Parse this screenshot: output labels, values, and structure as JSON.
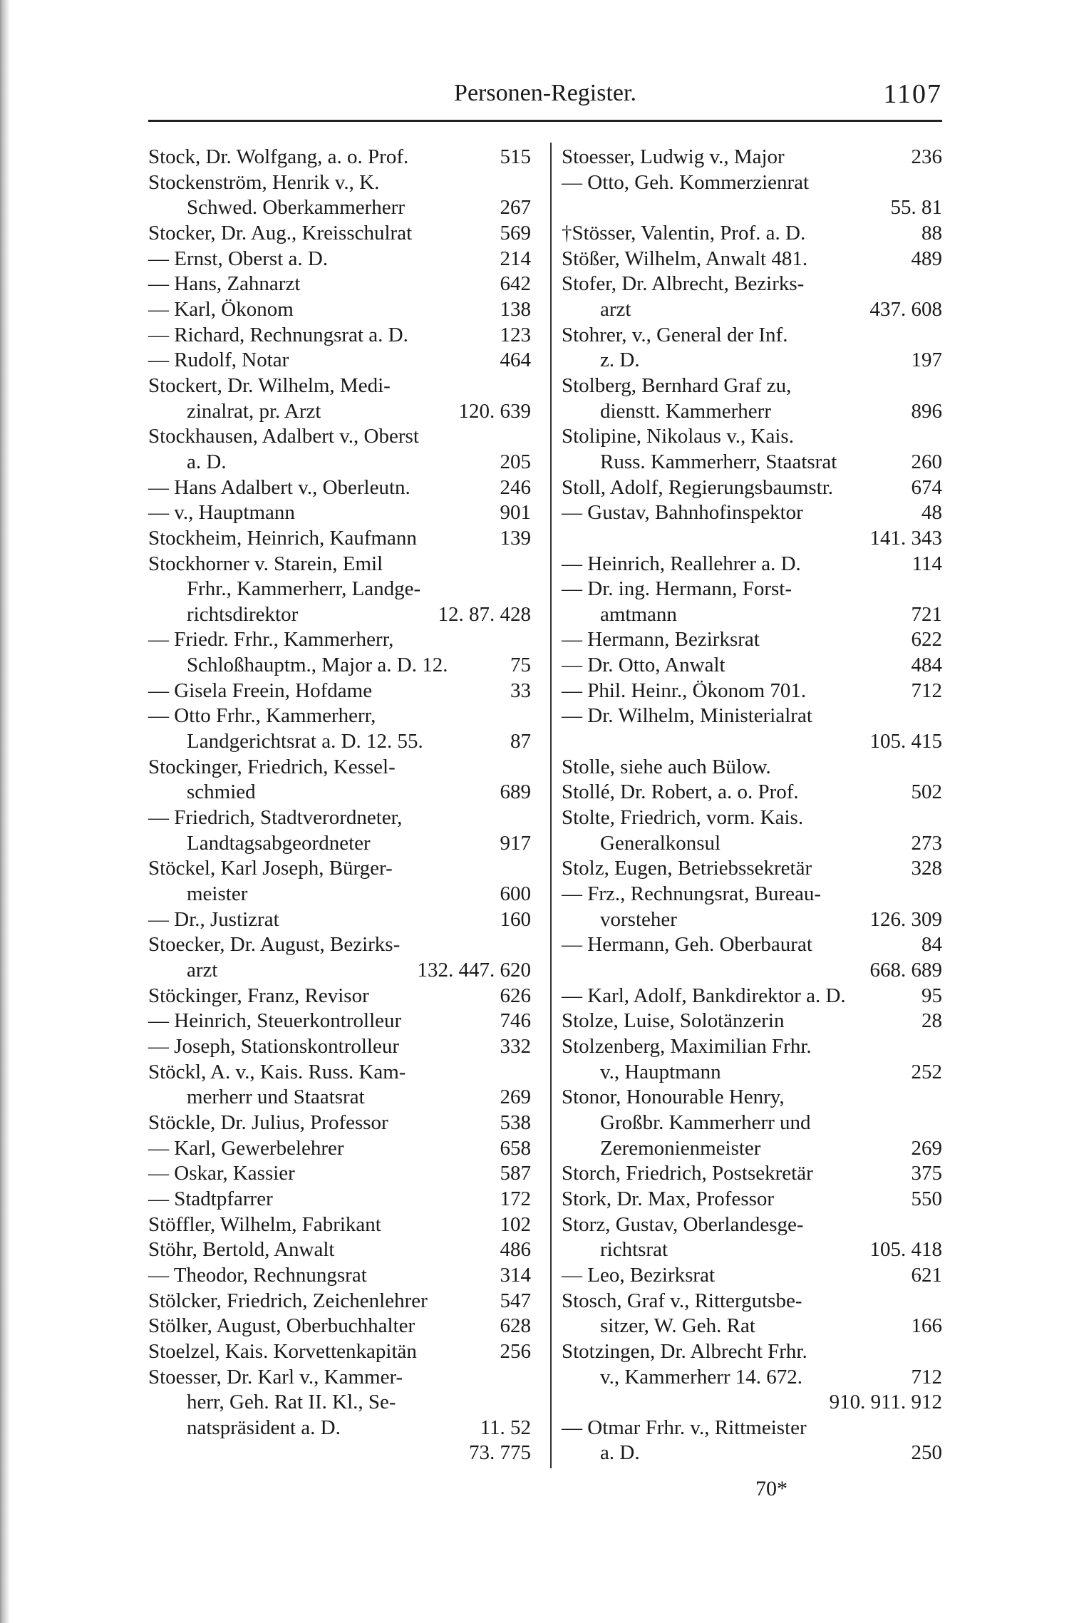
{
  "header": {
    "title": "Personen-Register.",
    "page_number": "1107"
  },
  "footer": {
    "signature": "70*"
  },
  "columns": {
    "left": [
      {
        "t": "Stock, Dr. Wolfgang, a. o. Prof.",
        "n": "515"
      },
      {
        "t": "Stockenström, Henrik v., K.",
        "n": ""
      },
      {
        "t": "Schwed. Oberkammerherr",
        "n": "267",
        "i": true
      },
      {
        "t": "Stocker, Dr. Aug., Kreisschulrat",
        "n": "569"
      },
      {
        "t": "— Ernst, Oberst a. D.",
        "n": "214"
      },
      {
        "t": "— Hans, Zahnarzt",
        "n": "642"
      },
      {
        "t": "— Karl, Ökonom",
        "n": "138"
      },
      {
        "t": "— Richard, Rechnungsrat a. D.",
        "n": "123"
      },
      {
        "t": "— Rudolf, Notar",
        "n": "464"
      },
      {
        "t": "Stockert, Dr. Wilhelm, Medi-",
        "n": ""
      },
      {
        "t": "zinalrat, pr. Arzt",
        "n": "120.  639",
        "i": true
      },
      {
        "t": "Stockhausen, Adalbert v., Oberst",
        "n": ""
      },
      {
        "t": "a. D.",
        "n": "205",
        "i": true
      },
      {
        "t": "— Hans Adalbert v., Oberleutn.",
        "n": "246"
      },
      {
        "t": "— v., Hauptmann",
        "n": "901"
      },
      {
        "t": "Stockheim, Heinrich, Kaufmann",
        "n": "139"
      },
      {
        "t": "Stockhorner v. Starein, Emil",
        "n": ""
      },
      {
        "t": "Frhr., Kammerherr, Landge-",
        "n": "",
        "i": true
      },
      {
        "t": "richtsdirektor",
        "n": "12. 87.  428",
        "i": true
      },
      {
        "t": "— Friedr. Frhr., Kammerherr,",
        "n": ""
      },
      {
        "t": "Schloßhauptm., Major a. D. 12.",
        "n": "75",
        "i": true
      },
      {
        "t": "— Gisela Freein, Hofdame",
        "n": "33"
      },
      {
        "t": "— Otto Frhr., Kammerherr,",
        "n": ""
      },
      {
        "t": "Landgerichtsrat a. D. 12. 55.",
        "n": "87",
        "i": true
      },
      {
        "t": "Stockinger, Friedrich, Kessel-",
        "n": ""
      },
      {
        "t": "schmied",
        "n": "689",
        "i": true
      },
      {
        "t": "— Friedrich, Stadtverordneter,",
        "n": ""
      },
      {
        "t": "Landtagsabgeordneter",
        "n": "917",
        "i": true
      },
      {
        "t": "Stöckel, Karl Joseph, Bürger-",
        "n": ""
      },
      {
        "t": "meister",
        "n": "600",
        "i": true
      },
      {
        "t": "— Dr., Justizrat",
        "n": "160"
      },
      {
        "t": "Stoecker, Dr. August, Bezirks-",
        "n": ""
      },
      {
        "t": "arzt",
        "n": "132. 447.  620",
        "i": true
      },
      {
        "t": "Stöckinger, Franz, Revisor",
        "n": "626"
      },
      {
        "t": "— Heinrich, Steuerkontrolleur",
        "n": "746"
      },
      {
        "t": "— Joseph, Stationskontrolleur",
        "n": "332"
      },
      {
        "t": "Stöckl, A. v., Kais. Russ. Kam-",
        "n": ""
      },
      {
        "t": "merherr und Staatsrat",
        "n": "269",
        "i": true
      },
      {
        "t": "Stöckle, Dr. Julius, Professor",
        "n": "538"
      },
      {
        "t": "— Karl, Gewerbelehrer",
        "n": "658"
      },
      {
        "t": "— Oskar, Kassier",
        "n": "587"
      },
      {
        "t": "— Stadtpfarrer",
        "n": "172"
      },
      {
        "t": "Stöffler, Wilhelm, Fabrikant",
        "n": "102"
      },
      {
        "t": "Stöhr, Bertold, Anwalt",
        "n": "486"
      },
      {
        "t": "— Theodor, Rechnungsrat",
        "n": "314"
      },
      {
        "t": "Stölcker, Friedrich, Zeichenlehrer",
        "n": "547"
      },
      {
        "t": "Stölker, August, Oberbuchhalter",
        "n": "628"
      },
      {
        "t": "Stoelzel, Kais. Korvettenkapitän",
        "n": "256"
      },
      {
        "t": "Stoesser, Dr. Karl v., Kammer-",
        "n": ""
      },
      {
        "t": "herr, Geh. Rat II. Kl., Se-",
        "n": "",
        "i": true
      },
      {
        "t": "natspräsident a. D.",
        "n": "11.    52",
        "i": true
      },
      {
        "t": "",
        "n": "73.  775",
        "i": true
      }
    ],
    "right": [
      {
        "t": "Stoesser, Ludwig v., Major",
        "n": "236"
      },
      {
        "t": "— Otto, Geh. Kommerzienrat",
        "n": ""
      },
      {
        "t": "",
        "n": "55.  81",
        "i": true
      },
      {
        "t": "†Stösser, Valentin, Prof. a. D.",
        "n": "88"
      },
      {
        "t": "Stößer, Wilhelm, Anwalt 481.",
        "n": "489"
      },
      {
        "t": "Stofer, Dr. Albrecht, Bezirks-",
        "n": ""
      },
      {
        "t": "arzt",
        "n": "437.  608",
        "i": true
      },
      {
        "t": "Stohrer, v., General der Inf.",
        "n": ""
      },
      {
        "t": "z. D.",
        "n": "197",
        "i": true
      },
      {
        "t": "Stolberg, Bernhard Graf zu,",
        "n": ""
      },
      {
        "t": "dienstt. Kammerherr",
        "n": "896",
        "i": true
      },
      {
        "t": "Stolipine, Nikolaus v., Kais.",
        "n": ""
      },
      {
        "t": "Russ. Kammerherr, Staatsrat",
        "n": "260",
        "i": true
      },
      {
        "t": "Stoll, Adolf, Regierungsbaumstr.",
        "n": "674"
      },
      {
        "t": "— Gustav, Bahnhofinspektor",
        "n": "48"
      },
      {
        "t": "",
        "n": "141.  343",
        "i": true
      },
      {
        "t": "— Heinrich, Reallehrer a. D.",
        "n": "114"
      },
      {
        "t": "— Dr. ing. Hermann, Forst-",
        "n": ""
      },
      {
        "t": "amtmann",
        "n": "721",
        "i": true
      },
      {
        "t": "— Hermann, Bezirksrat",
        "n": "622"
      },
      {
        "t": "— Dr. Otto, Anwalt",
        "n": "484"
      },
      {
        "t": "— Phil. Heinr., Ökonom 701.",
        "n": "712"
      },
      {
        "t": "— Dr. Wilhelm, Ministerialrat",
        "n": ""
      },
      {
        "t": "",
        "n": "105.  415",
        "i": true
      },
      {
        "t": "Stolle, siehe auch Bülow.",
        "n": ""
      },
      {
        "t": "Stollé, Dr. Robert, a. o. Prof.",
        "n": "502"
      },
      {
        "t": "Stolte, Friedrich, vorm. Kais.",
        "n": ""
      },
      {
        "t": "Generalkonsul",
        "n": "273",
        "i": true
      },
      {
        "t": "Stolz, Eugen, Betriebssekretär",
        "n": "328"
      },
      {
        "t": "— Frz., Rechnungsrat, Bureau-",
        "n": ""
      },
      {
        "t": "vorsteher",
        "n": "126.  309",
        "i": true
      },
      {
        "t": "— Hermann, Geh. Oberbaurat",
        "n": "84"
      },
      {
        "t": "",
        "n": "668.  689",
        "i": true
      },
      {
        "t": "— Karl, Adolf, Bankdirektor a. D.",
        "n": "95"
      },
      {
        "t": "Stolze, Luise, Solotänzerin",
        "n": "28"
      },
      {
        "t": "Stolzenberg, Maximilian Frhr.",
        "n": ""
      },
      {
        "t": "v., Hauptmann",
        "n": "252",
        "i": true
      },
      {
        "t": "Stonor, Honourable Henry,",
        "n": ""
      },
      {
        "t": "Großbr. Kammerherr und",
        "n": "",
        "i": true
      },
      {
        "t": "Zeremonienmeister",
        "n": "269",
        "i": true
      },
      {
        "t": "Storch, Friedrich, Postsekretär",
        "n": "375"
      },
      {
        "t": "Stork, Dr. Max, Professor",
        "n": "550"
      },
      {
        "t": "Storz, Gustav, Oberlandesge-",
        "n": ""
      },
      {
        "t": "richtsrat",
        "n": "105.  418",
        "i": true
      },
      {
        "t": "— Leo, Bezirksrat",
        "n": "621"
      },
      {
        "t": "Stosch, Graf v., Rittergutsbe-",
        "n": ""
      },
      {
        "t": "sitzer, W. Geh. Rat",
        "n": "166",
        "i": true
      },
      {
        "t": "Stotzingen, Dr. Albrecht Frhr.",
        "n": ""
      },
      {
        "t": "v., Kammerherr  14. 672.",
        "n": "712",
        "i": true
      },
      {
        "t": "",
        "n": "910. 911.  912",
        "i": true
      },
      {
        "t": "— Otmar Frhr. v., Rittmeister",
        "n": ""
      },
      {
        "t": "a. D.",
        "n": "250",
        "i": true
      }
    ]
  }
}
